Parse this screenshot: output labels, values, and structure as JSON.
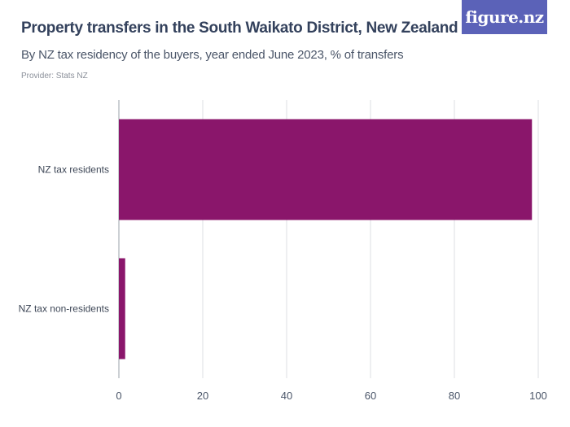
{
  "header": {
    "title": "Property transfers in the South Waikato District, New Zealand",
    "subtitle": "By NZ tax residency of the buyers, year ended June 2023, % of transfers",
    "provider": "Provider: Stats NZ"
  },
  "brand": {
    "logo_text": "figure.nz",
    "logo_color": "#5b62b8"
  },
  "chart_data": {
    "type": "bar",
    "orientation": "horizontal",
    "title": "Property transfers in the South Waikato District, New Zealand",
    "subtitle": "By NZ tax residency of the buyers, year ended June 2023, % of transfers",
    "categories": [
      "NZ tax residents",
      "NZ tax non-residents"
    ],
    "values": [
      98.5,
      1.5
    ],
    "xlim": [
      0,
      100
    ],
    "xticks": [
      "0",
      "20",
      "40",
      "60",
      "80",
      "100"
    ],
    "bar_color": "#8a166b",
    "grid": true
  }
}
